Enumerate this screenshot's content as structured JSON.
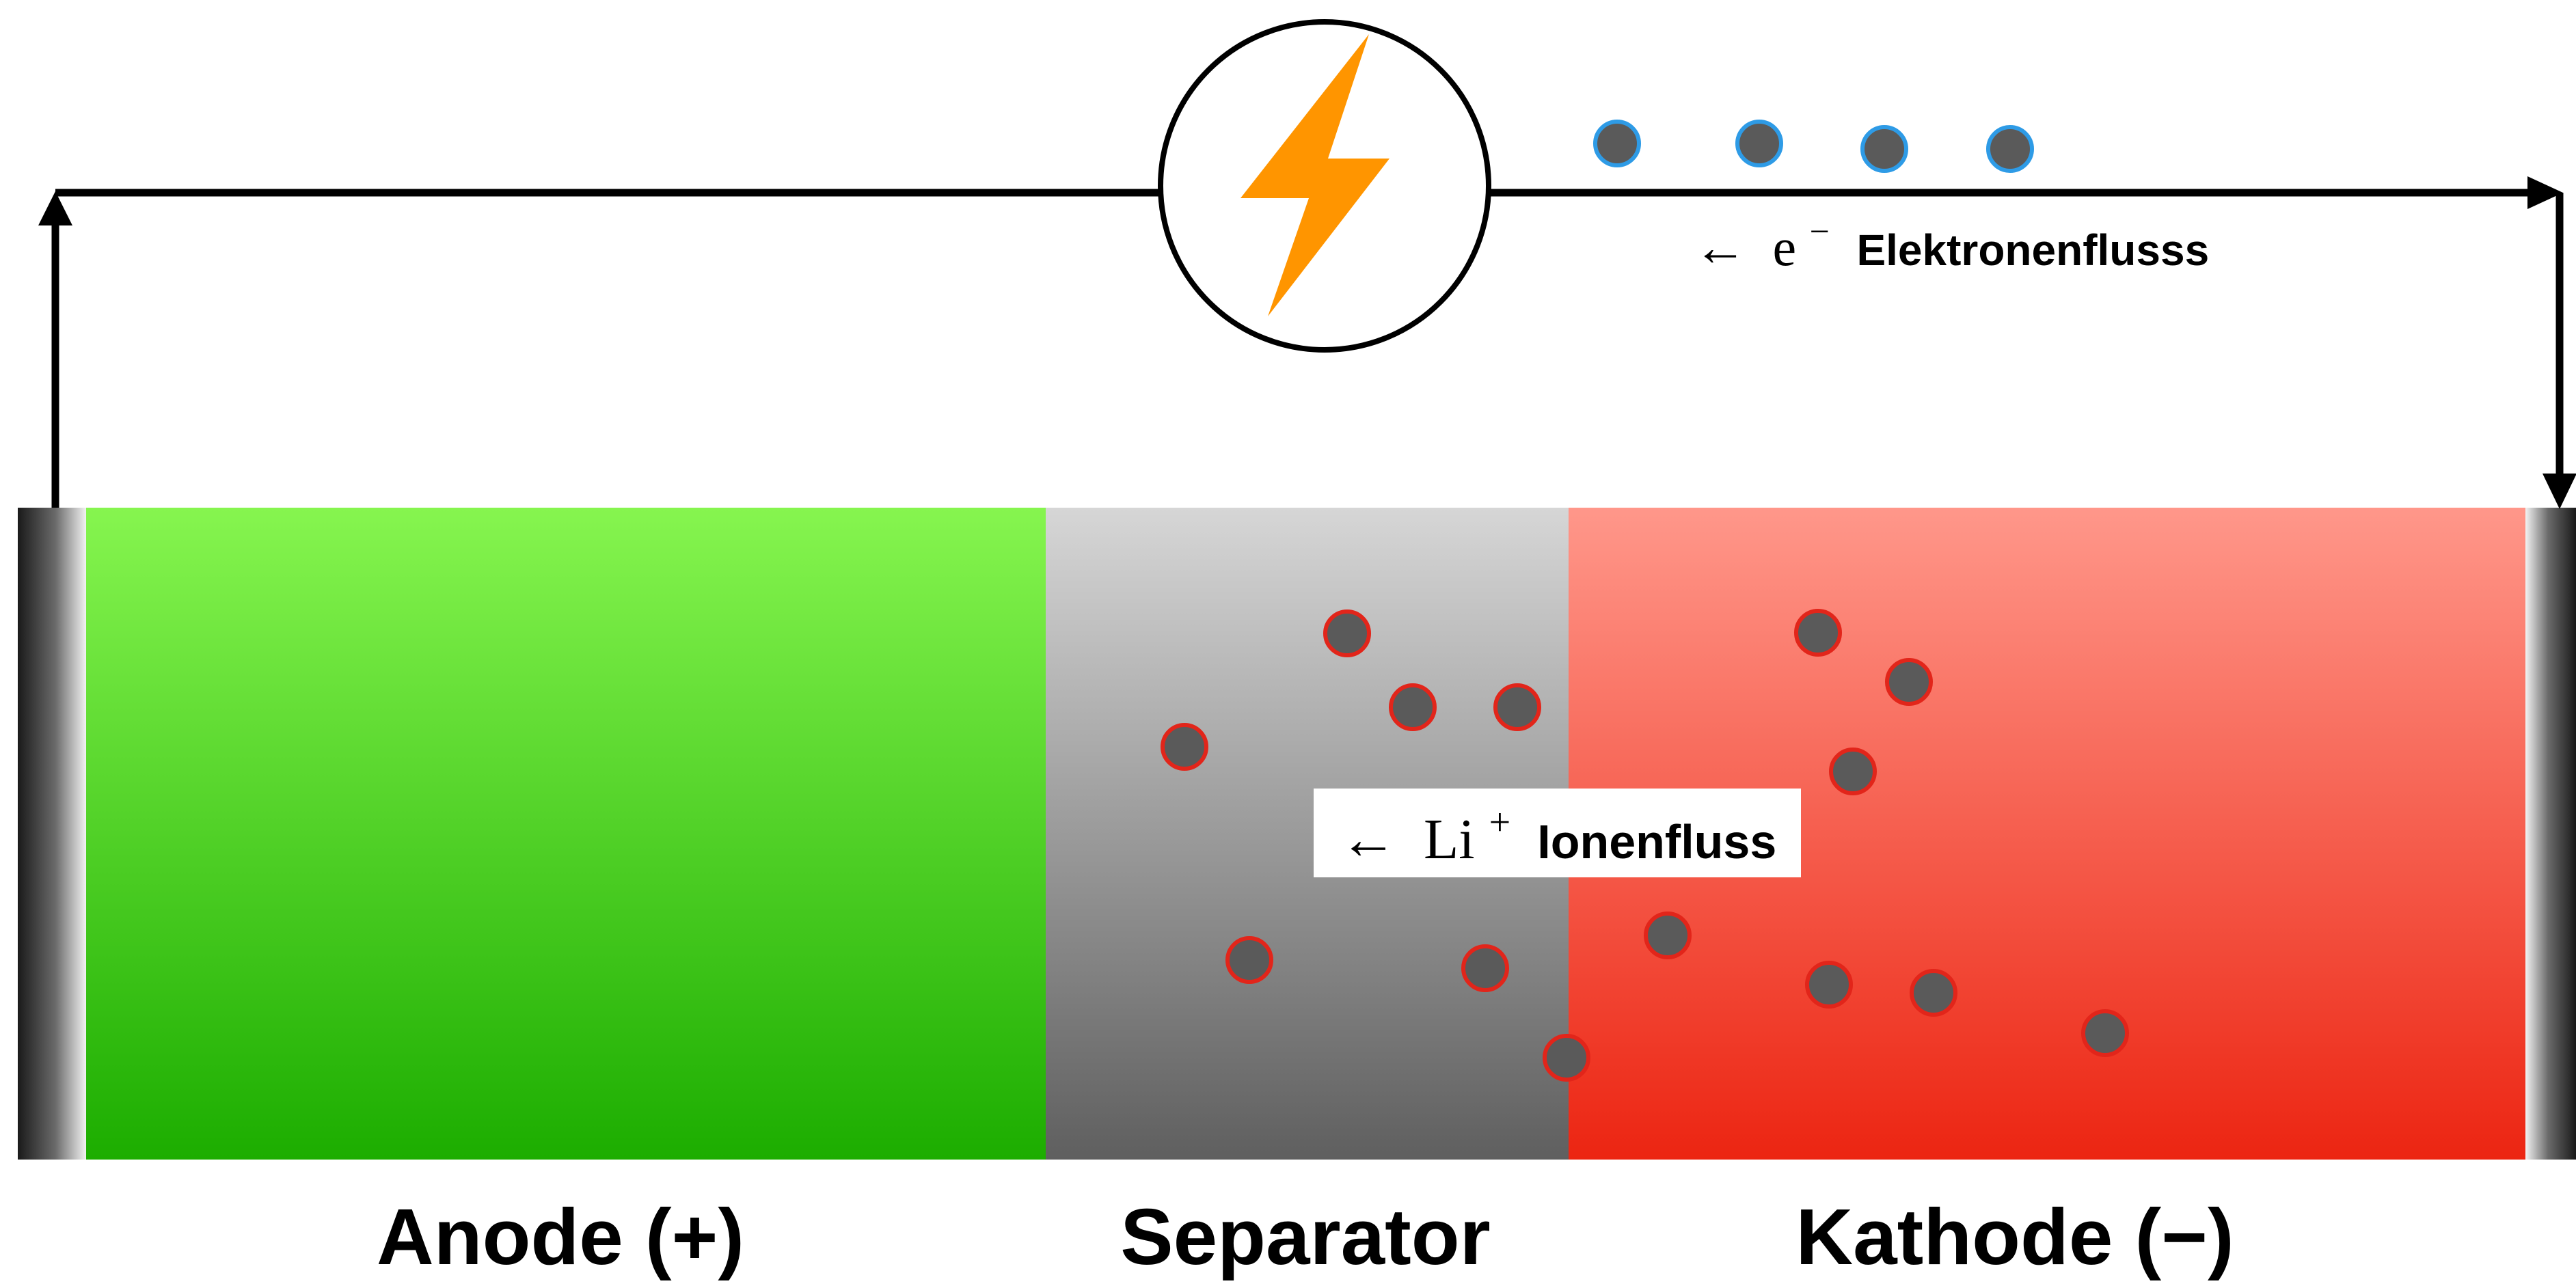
{
  "diagram": {
    "components": {
      "anode": {
        "label": "Anode (+)"
      },
      "separator": {
        "label": "Separator"
      },
      "cathode": {
        "label": "Kathode (−)"
      }
    },
    "electron_flow": {
      "arrow": "←",
      "symbol": "e",
      "superscript": "−",
      "label": "Elektronenflusss"
    },
    "ion_flow": {
      "arrow": "←",
      "symbol": "Li",
      "superscript": "+",
      "label": "Ionenfluss"
    },
    "icons": {
      "power_source": "lightning-bolt-icon",
      "electron": "electron-dot",
      "ion": "lithium-ion-dot"
    },
    "colors": {
      "anode_top": "#86F54F",
      "anode_bottom": "#1CAD00",
      "separator_top": "#D6D6D6",
      "separator_bottom": "#5F5F5F",
      "cathode_top": "#FF978A",
      "cathode_bottom": "#EC2512",
      "particle_fill": "#5A5A5A",
      "electron_stroke": "#2E9BE6",
      "ion_stroke": "#E2251A",
      "bolt": "#FF9500",
      "wire": "#000000"
    }
  }
}
